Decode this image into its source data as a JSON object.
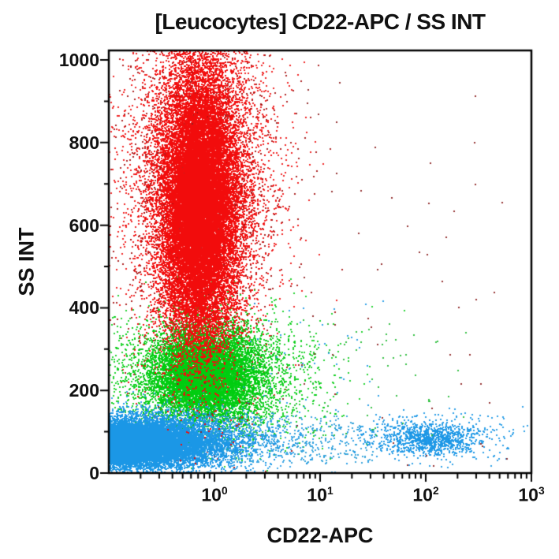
{
  "title": "[Leucocytes] CD22-APC / SS INT",
  "colors": {
    "axis": "#000000",
    "text": "#111111",
    "background": "#ffffff",
    "granulocytes_red": "#f20c0c",
    "monocytes_green": "#00cc11",
    "lymphocytes_blue": "#1b97e6"
  },
  "chart_data": {
    "type": "scatter",
    "subtype": "flow-cytometry-dot-plot",
    "title": "[Leucocytes] CD22-APC / SS INT",
    "xlabel": "CD22-APC",
    "ylabel": "SS INT",
    "x_scale": "log10",
    "x_range_log10": [
      -1,
      3
    ],
    "y_scale": "linear",
    "y_range": [
      0,
      1023
    ],
    "grid": "off",
    "legend": "none",
    "y_ticks": [
      0,
      200,
      400,
      600,
      800,
      1000
    ],
    "y_tick_labels": [
      "0",
      "200",
      "400",
      "600",
      "800",
      "1000"
    ],
    "y_minor_tick_step": 100,
    "x_ticks": [
      {
        "base": "10",
        "exp": "0",
        "log10": 0
      },
      {
        "base": "10",
        "exp": "1",
        "log10": 1
      },
      {
        "base": "10",
        "exp": "2",
        "log10": 2
      },
      {
        "base": "10",
        "exp": "3",
        "log10": 3
      }
    ],
    "x_minor_ticks": "log-mantissa-2-to-9-each-decade",
    "populations": [
      {
        "name": "granulocytes-halo",
        "color": "#ee1111",
        "shape": "gauss",
        "n": 6000,
        "cx": -0.13,
        "sx": 0.34,
        "cy": 700,
        "sy": 225,
        "size": 2,
        "alpha": 0.9
      },
      {
        "name": "granulocytes-dark-specks",
        "color": "#a51010",
        "shape": "gauss",
        "n": 1400,
        "cx": -0.12,
        "sx": 0.4,
        "cy": 690,
        "sy": 235,
        "size": 2,
        "alpha": 0.9
      },
      {
        "name": "monocytes-halo",
        "color": "#00cc11",
        "shape": "gauss",
        "n": 3000,
        "cx": 0.0,
        "sx": 0.5,
        "cy": 235,
        "sy": 75,
        "size": 2,
        "alpha": 0.85
      },
      {
        "name": "monocytes-core",
        "color": "#00cc11",
        "shape": "gauss",
        "n": 8000,
        "cx": -0.09,
        "sx": 0.25,
        "cy": 238,
        "sy": 55,
        "size": 2,
        "alpha": 0.95
      },
      {
        "name": "lymphocytes-halo",
        "color": "#1b97e6",
        "shape": "gauss",
        "n": 3500,
        "cx": -0.55,
        "sx": 0.6,
        "cy": 78,
        "sy": 36,
        "size": 2,
        "alpha": 0.85
      },
      {
        "name": "lymphocytes-core",
        "color": "#1b97e6",
        "shape": "gauss",
        "n": 17000,
        "cx": -0.85,
        "sx": 0.42,
        "cy": 72,
        "sy": 28,
        "size": 2,
        "alpha": 1
      },
      {
        "name": "lymphocytes-right-tail",
        "color": "#2a9fd8",
        "shape": "uniform",
        "n": 350,
        "x0": -0.1,
        "x1": 1.5,
        "y0": 25,
        "y1": 140,
        "size": 2,
        "alpha": 0.9
      },
      {
        "name": "b-cells-halo",
        "color": "#1b97e6",
        "shape": "gauss",
        "n": 400,
        "cx": 2.0,
        "sx": 0.42,
        "cy": 85,
        "sy": 30,
        "size": 2,
        "alpha": 0.9
      },
      {
        "name": "b-cells-core",
        "color": "#1b97e6",
        "shape": "gauss",
        "n": 800,
        "cx": 2.05,
        "sx": 0.22,
        "cy": 83,
        "sy": 20,
        "size": 2,
        "alpha": 0.95
      },
      {
        "name": "granulocytes-core",
        "color": "#f20c0c",
        "shape": "gauss",
        "n": 20000,
        "cx": -0.14,
        "sx": 0.18,
        "cy": 645,
        "sy": 165,
        "size": 2,
        "alpha": 1
      },
      {
        "name": "outliers-maroon",
        "color": "#8c2020",
        "shape": "uniform",
        "n": 80,
        "x0": -0.6,
        "x1": 2.8,
        "y0": 10,
        "y1": 950,
        "size": 2,
        "alpha": 0.9
      },
      {
        "name": "outliers-green",
        "color": "#22bb33",
        "shape": "uniform",
        "n": 70,
        "x0": 0.4,
        "x1": 2.4,
        "y0": 90,
        "y1": 380,
        "size": 2,
        "alpha": 0.9
      },
      {
        "name": "outliers-blue",
        "color": "#1b97e6",
        "shape": "uniform",
        "n": 40,
        "x0": 0.2,
        "x1": 1.6,
        "y0": 150,
        "y1": 420,
        "size": 2,
        "alpha": 0.9
      }
    ]
  }
}
